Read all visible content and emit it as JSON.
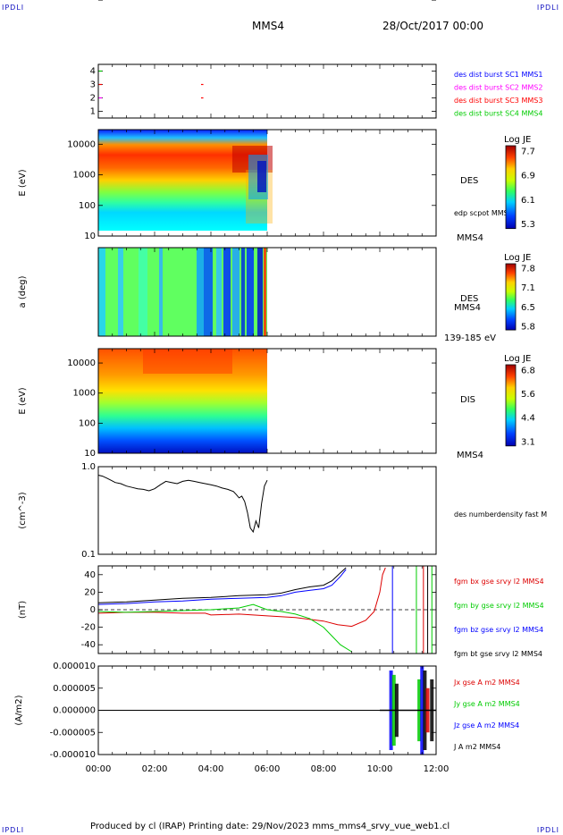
{
  "header": {
    "corner_left": "IPDLI",
    "corner_right": "IPDLI",
    "title": "MMS4",
    "date": "28/Oct/2017 00:00"
  },
  "footer": {
    "text": "Produced by cl (IRAP)   Printing date: 29/Nov/2023   mms_mms4_srvy_vue_web1.cl",
    "corner_left": "IPDLI",
    "corner_right": "IPDLI"
  },
  "chart_data": [
    {
      "type": "scatter",
      "name": "spacecraft-availability",
      "ylim": [
        0.5,
        4.5
      ],
      "yticks": [
        "1",
        "2",
        "3",
        "4"
      ],
      "legend": [
        {
          "label": "des dist burst SC1 MMS1",
          "color": "#0000ff"
        },
        {
          "label": "des dist burst SC2 MMS2",
          "color": "#ff00ff"
        },
        {
          "label": "des dist burst SC3 MMS3",
          "color": "#ff0000"
        },
        {
          "label": "des dist burst SC4 MMS4",
          "color": "#00cc00"
        }
      ],
      "marks": [
        {
          "x": [
            0.0,
            0.1
          ],
          "y": 4,
          "color": "#00cc00"
        },
        {
          "x": [
            0.0,
            0.1
          ],
          "y": 3,
          "color": "#ff0000"
        },
        {
          "x": [
            0.0,
            0.1
          ],
          "y": 2,
          "color": "#ff00ff"
        },
        {
          "x": [
            3.65,
            3.7
          ],
          "y": 3,
          "color": "#ff0000"
        },
        {
          "x": [
            3.65,
            3.7
          ],
          "y": 2,
          "color": "#ff0000"
        }
      ]
    },
    {
      "type": "heatmap",
      "name": "des-energy-spectrogram",
      "ylabel": "E (eV)",
      "yscale": "log",
      "ylim": [
        10,
        30000
      ],
      "yticks": [
        "10",
        "100",
        "1000",
        "10000"
      ],
      "xrange_hours": [
        0,
        6
      ],
      "label_right": "DES",
      "label_right2": "edp scpot MMS4",
      "label_bottom_right": "MMS4",
      "colorbar": {
        "title": "Log JE",
        "min": 5.3,
        "max": 7.7,
        "ticks": [
          "7.7",
          "6.9",
          "6.1",
          "5.3"
        ]
      }
    },
    {
      "type": "heatmap",
      "name": "des-pitch-angle",
      "ylabel": "a (deg)",
      "ylim": [
        0,
        180
      ],
      "yticks": [
        "0",
        "50",
        "100",
        "150"
      ],
      "xrange_hours": [
        0,
        6
      ],
      "label_right": "DES",
      "label_right2": "MMS4",
      "label_bottom_right": "139-185 eV",
      "colorbar": {
        "title": "Log JE",
        "min": 5.8,
        "max": 7.8,
        "ticks": [
          "7.8",
          "7.1",
          "6.5",
          "5.8"
        ]
      }
    },
    {
      "type": "heatmap",
      "name": "dis-energy-spectrogram",
      "ylabel": "E (eV)",
      "yscale": "log",
      "ylim": [
        10,
        30000
      ],
      "yticks": [
        "10",
        "100",
        "1000",
        "10000"
      ],
      "xrange_hours": [
        0,
        6
      ],
      "label_right": "DIS",
      "label_bottom_right": "MMS4",
      "colorbar": {
        "title": "Log JE",
        "min": 3.1,
        "max": 6.8,
        "ticks": [
          "6.8",
          "5.6",
          "4.4",
          "3.1"
        ]
      }
    },
    {
      "type": "line",
      "name": "density",
      "ylabel": "(cm^-3)",
      "yscale": "log",
      "ylim": [
        0.1,
        1.0
      ],
      "yticks": [
        "0.1",
        "1.0"
      ],
      "series": [
        {
          "name": "des numberdensity fast M",
          "color": "#000000",
          "x": [
            0,
            0.15,
            0.3,
            0.45,
            0.6,
            0.8,
            1.0,
            1.2,
            1.4,
            1.6,
            1.8,
            2.0,
            2.2,
            2.4,
            2.6,
            2.8,
            3.0,
            3.2,
            3.4,
            3.6,
            3.8,
            4.0,
            4.2,
            4.4,
            4.6,
            4.8,
            4.9,
            5.0,
            5.1,
            5.2,
            5.3,
            5.4,
            5.5,
            5.6,
            5.7,
            5.8,
            5.9,
            6.0
          ],
          "y": [
            0.8,
            0.78,
            0.74,
            0.7,
            0.66,
            0.64,
            0.6,
            0.58,
            0.56,
            0.55,
            0.53,
            0.56,
            0.62,
            0.68,
            0.66,
            0.64,
            0.68,
            0.7,
            0.68,
            0.66,
            0.64,
            0.62,
            0.6,
            0.57,
            0.55,
            0.52,
            0.48,
            0.44,
            0.46,
            0.4,
            0.3,
            0.2,
            0.18,
            0.24,
            0.2,
            0.38,
            0.6,
            0.7
          ]
        }
      ]
    },
    {
      "type": "line",
      "name": "magnetic-field",
      "ylabel": "(nT)",
      "ylim": [
        -50,
        50
      ],
      "yticks": [
        "-40",
        "-20",
        "0",
        "20",
        "40"
      ],
      "xlim_hours": [
        0,
        12
      ],
      "series": [
        {
          "name": "fgm bx gse srvy l2 MMS4",
          "color": "#dd0000",
          "x": [
            0,
            1,
            2,
            3,
            3.8,
            4,
            5,
            6,
            7,
            8,
            8.5,
            9,
            9.5,
            9.8,
            10.0,
            10.1,
            10.2
          ],
          "y": [
            -4,
            -3,
            -3,
            -4,
            -4,
            -6,
            -5,
            -7,
            -9,
            -13,
            -17,
            -19,
            -12,
            -2,
            20,
            40,
            48
          ]
        },
        {
          "name": "fgm by gse srvy l2 MMS4",
          "color": "#00cc00",
          "x": [
            0,
            1,
            2,
            3,
            4,
            5,
            5.5,
            6,
            6.5,
            7,
            7.5,
            8,
            8.3,
            8.6,
            9.0
          ],
          "y": [
            -2,
            -3,
            -2,
            -1,
            0,
            2,
            6,
            0,
            -2,
            -5,
            -10,
            -20,
            -30,
            -40,
            -48
          ]
        },
        {
          "name": "fgm bz gse srvy l2 MMS4",
          "color": "#0000ff",
          "x": [
            0,
            1,
            2,
            3,
            4,
            5,
            6,
            6.5,
            7,
            7.5,
            8,
            8.3,
            8.6,
            8.8
          ],
          "y": [
            6,
            7,
            9,
            10,
            12,
            13,
            14,
            16,
            20,
            22,
            24,
            28,
            38,
            46
          ]
        },
        {
          "name": "fgm bt gse srvy l2 MMS4",
          "color": "#000000",
          "x": [
            0,
            1,
            2,
            3,
            4,
            5,
            6,
            6.5,
            7,
            7.5,
            8,
            8.3,
            8.6,
            8.8
          ],
          "y": [
            8,
            9,
            11,
            13,
            14,
            16,
            17,
            19,
            23,
            26,
            28,
            33,
            42,
            48
          ]
        }
      ],
      "vlines": [
        {
          "x": 10.45,
          "color": "#0000ff"
        },
        {
          "x": 11.3,
          "color": "#00cc00"
        },
        {
          "x": 11.55,
          "color": "#dd0000"
        },
        {
          "x": 11.7,
          "color": "#000000"
        },
        {
          "x": 11.85,
          "color": "#00cc00"
        }
      ]
    },
    {
      "type": "line",
      "name": "current-density",
      "ylabel": "(A/m2)",
      "ylim": [
        -1e-05,
        1e-05
      ],
      "yticks": [
        "-0.000010",
        "-0.000005",
        "0.000000",
        "0.000005",
        "0.000010"
      ],
      "xlabel_ticks": [
        "00:00",
        "02:00",
        "04:00",
        "06:00",
        "08:00",
        "10:00",
        "12:00"
      ],
      "xlim_hours": [
        0,
        12
      ],
      "series": [
        {
          "name": "Jx gse A m2 MMS4",
          "color": "#dd0000"
        },
        {
          "name": "Jy gse A m2 MMS4",
          "color": "#00cc00"
        },
        {
          "name": "Jz gse A m2 MMS4",
          "color": "#0000ff"
        },
        {
          "name": "J A m2 MMS4",
          "color": "#000000"
        }
      ]
    }
  ]
}
